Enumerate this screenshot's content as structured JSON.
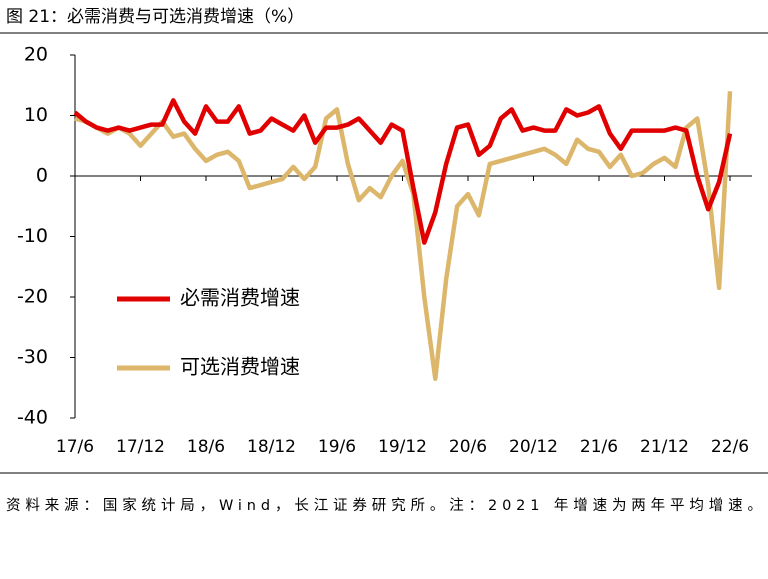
{
  "title": "图 21：必需消费与可选消费增速（%）",
  "source": "资料来源：国家统计局，Wind，长江证券研究所。注：2021 年增速为两年平均增速。",
  "chart_data": {
    "type": "line",
    "categories": [
      "17/6",
      null,
      null,
      null,
      null,
      null,
      "17/12",
      null,
      null,
      null,
      null,
      null,
      "18/6",
      null,
      null,
      null,
      null,
      null,
      "18/12",
      null,
      null,
      null,
      null,
      null,
      "19/6",
      null,
      null,
      null,
      null,
      null,
      "19/12",
      null,
      null,
      null,
      null,
      null,
      "20/6",
      null,
      null,
      null,
      null,
      null,
      "20/12",
      null,
      null,
      null,
      null,
      null,
      "21/6",
      null,
      null,
      null,
      null,
      null,
      "21/12",
      null,
      null,
      null,
      null,
      null,
      "22/6"
    ],
    "series": [
      {
        "name": "必需消费增速",
        "color": "#e00000",
        "values": [
          10.5,
          9,
          8,
          7.5,
          8,
          7.5,
          8,
          8.5,
          8.5,
          12.5,
          9,
          7,
          11.5,
          9,
          9,
          11.5,
          7,
          7.5,
          9.5,
          8.5,
          7.5,
          10,
          5.5,
          8,
          8,
          8.5,
          9.5,
          7.5,
          5.5,
          8.5,
          7.5,
          -2,
          -11,
          -6,
          2,
          8,
          8.5,
          3.5,
          5,
          9.5,
          11,
          7.5,
          8,
          7.5,
          7.5,
          11,
          10,
          10.5,
          11.5,
          7,
          4.5,
          7.5,
          7.5,
          7.5,
          7.5,
          8,
          7.5,
          0,
          -5.5,
          -1,
          7
        ]
      },
      {
        "name": "可选消费增速",
        "color": "#dcb66b",
        "values": [
          9.5,
          9,
          8,
          7,
          8,
          7,
          5,
          7,
          9,
          6.5,
          7,
          4.5,
          2.5,
          3.5,
          4,
          2.5,
          -2,
          -1.5,
          -1,
          -0.5,
          1.5,
          -0.5,
          1.5,
          9.5,
          11,
          2,
          -4,
          -2,
          -3.5,
          0,
          2.5,
          -3,
          -20,
          -33.5,
          -17,
          -5,
          -3,
          -6.5,
          2,
          2.5,
          3,
          3.5,
          4,
          4.5,
          3.5,
          2,
          6,
          4.5,
          4,
          1.5,
          3.5,
          0,
          0.5,
          2,
          3,
          1.5,
          8,
          9.5,
          -1.5,
          -18.5,
          14
        ]
      }
    ],
    "ylim": [
      -40,
      20
    ],
    "yticks": [
      20,
      10,
      0,
      -10,
      -20,
      -30,
      -40
    ]
  }
}
